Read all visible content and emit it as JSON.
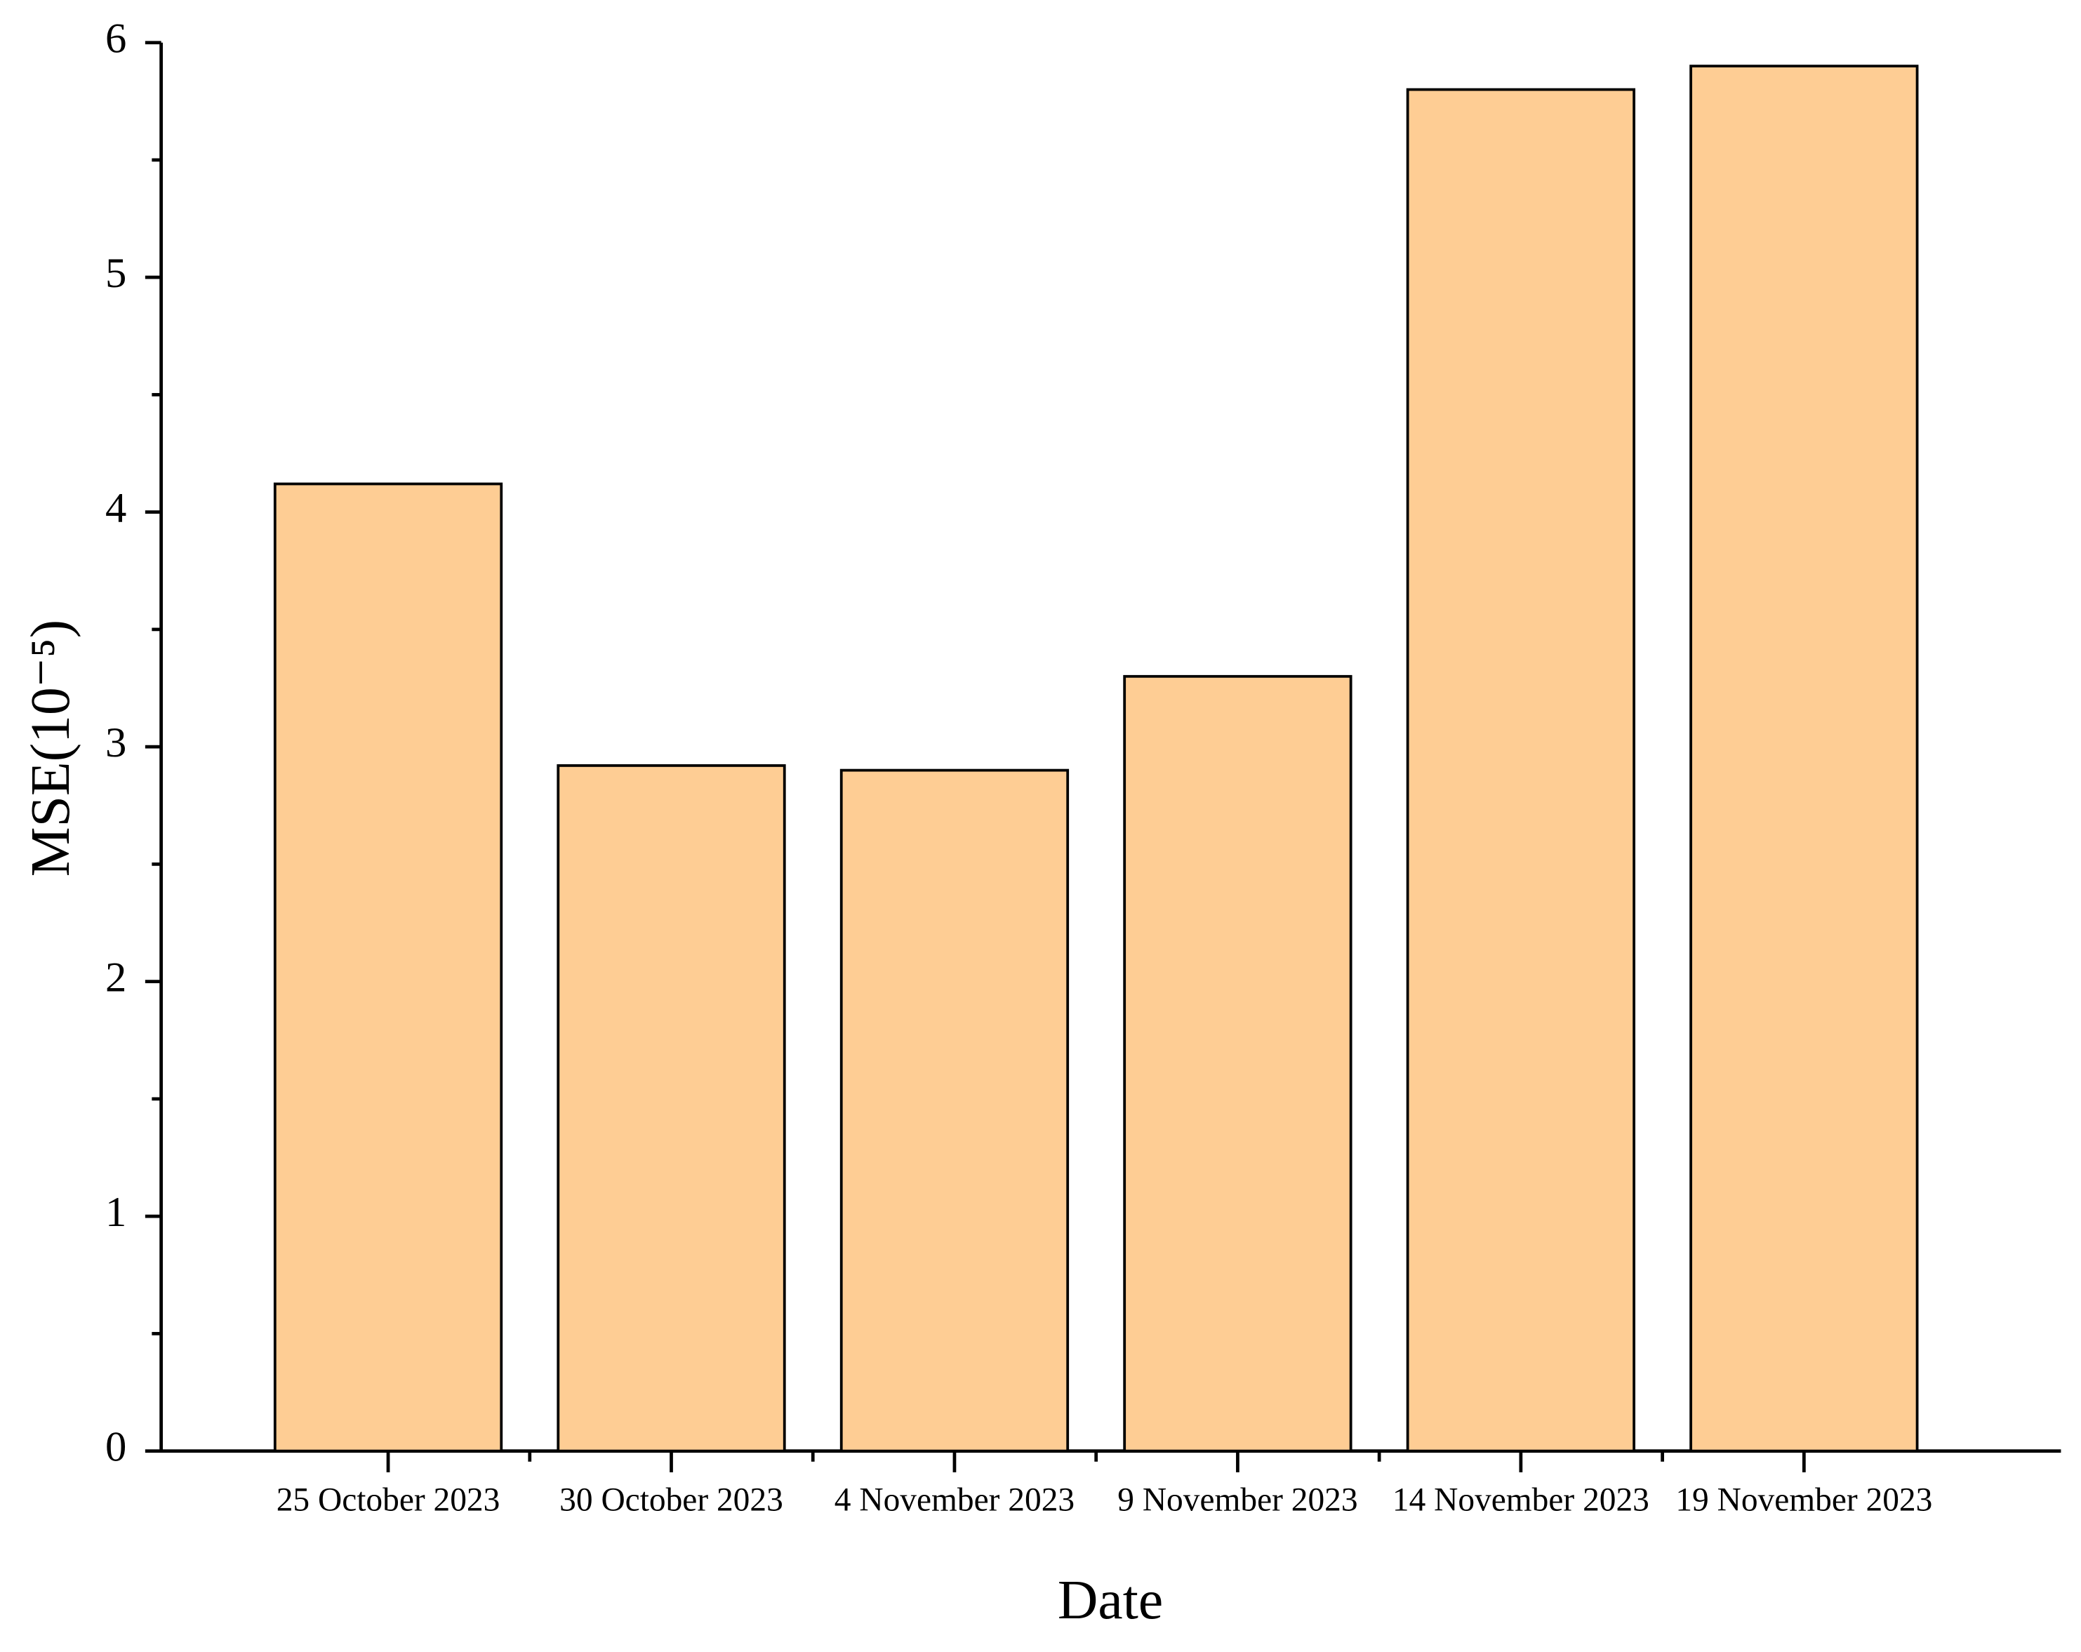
{
  "chart_data": {
    "type": "bar",
    "x_label": "Date",
    "y_label": "MSE(10⁻⁵)",
    "categories": [
      "25 October 2023",
      "30 October 2023",
      "4 November 2023",
      "9 November 2023",
      "14 November 2023",
      "19 November 2023"
    ],
    "values": [
      4.12,
      2.92,
      2.9,
      3.3,
      5.8,
      5.9
    ],
    "color": "#fecd94",
    "ylim": [
      0,
      6
    ],
    "yticks": [
      0,
      1,
      2,
      3,
      4,
      5,
      6
    ],
    "minor_yticks": [
      0.5,
      1.5,
      2.5,
      3.5,
      4.5,
      5.5
    ],
    "grid": false
  }
}
